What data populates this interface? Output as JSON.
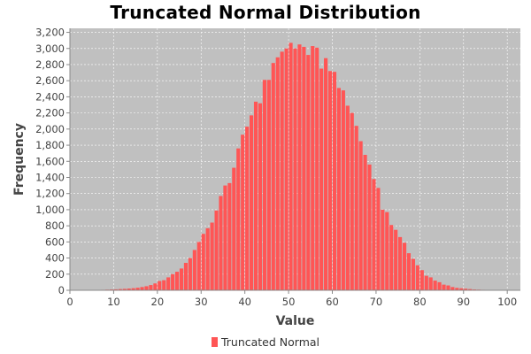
{
  "chart_data": {
    "type": "bar",
    "title": "Truncated Normal Distribution",
    "xlabel": "Value",
    "ylabel": "Frequency",
    "xlim": [
      0,
      103
    ],
    "ylim": [
      0,
      3250
    ],
    "x_ticks": [
      0,
      10,
      20,
      30,
      40,
      50,
      60,
      70,
      80,
      90,
      100
    ],
    "y_ticks": [
      0,
      200,
      400,
      600,
      800,
      1000,
      1200,
      1400,
      1600,
      1800,
      2000,
      2200,
      2400,
      2600,
      2800,
      3000,
      3200
    ],
    "grid": true,
    "legend_position": "bottom",
    "bar_color": "#ff5555",
    "plot_background": "#c0c0c0",
    "series": [
      {
        "name": "Truncated Normal",
        "bin_width": 1,
        "x": [
          0,
          1,
          2,
          3,
          4,
          5,
          6,
          7,
          8,
          9,
          10,
          11,
          12,
          13,
          14,
          15,
          16,
          17,
          18,
          19,
          20,
          21,
          22,
          23,
          24,
          25,
          26,
          27,
          28,
          29,
          30,
          31,
          32,
          33,
          34,
          35,
          36,
          37,
          38,
          39,
          40,
          41,
          42,
          43,
          44,
          45,
          46,
          47,
          48,
          49,
          50,
          51,
          52,
          53,
          54,
          55,
          56,
          57,
          58,
          59,
          60,
          61,
          62,
          63,
          64,
          65,
          66,
          67,
          68,
          69,
          70,
          71,
          72,
          73,
          74,
          75,
          76,
          77,
          78,
          79,
          80,
          81,
          82,
          83,
          84,
          85,
          86,
          87,
          88,
          89,
          90,
          91,
          92,
          93,
          94,
          95,
          96,
          97,
          98,
          99,
          100
        ],
        "values": [
          1,
          1,
          2,
          2,
          3,
          4,
          5,
          6,
          8,
          10,
          12,
          15,
          18,
          22,
          26,
          32,
          40,
          50,
          65,
          85,
          115,
          125,
          160,
          200,
          230,
          270,
          340,
          400,
          500,
          600,
          700,
          770,
          840,
          990,
          1170,
          1300,
          1330,
          1520,
          1760,
          1930,
          2030,
          2170,
          2340,
          2320,
          2610,
          2610,
          2820,
          2890,
          2960,
          3000,
          3070,
          3000,
          3050,
          3020,
          2920,
          3030,
          3010,
          2750,
          2880,
          2720,
          2710,
          2510,
          2480,
          2290,
          2200,
          2040,
          1850,
          1680,
          1560,
          1380,
          1270,
          1000,
          970,
          810,
          750,
          660,
          590,
          460,
          390,
          310,
          250,
          180,
          160,
          120,
          100,
          70,
          60,
          40,
          30,
          25,
          20,
          15,
          10,
          8,
          6,
          4,
          3,
          2,
          1,
          1,
          1
        ]
      }
    ]
  }
}
